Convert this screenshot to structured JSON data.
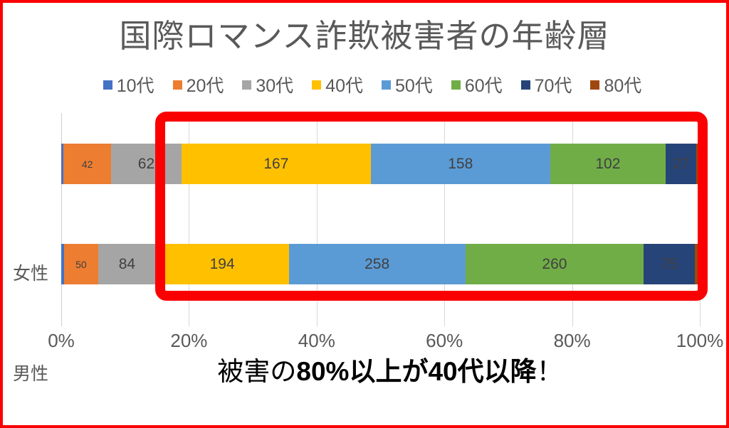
{
  "title": "国際ロマンス詐欺被害者の年齢層",
  "frame": {
    "border_color": "#FA0000"
  },
  "highlight_box": {
    "color": "#FB0000"
  },
  "annotation": {
    "prefix": "被害の",
    "bold": "80%以上が40代以降",
    "suffix": "！"
  },
  "chart_data": {
    "type": "bar",
    "orientation": "horizontal",
    "stacked": true,
    "title": "国際ロマンス詐欺被害者の年齢層",
    "categories": [
      "女性",
      "男性"
    ],
    "series": [
      {
        "name": "10代",
        "color": "#4472C4",
        "values": [
          2,
          4
        ],
        "labels": [
          "",
          ""
        ]
      },
      {
        "name": "20代",
        "color": "#ED7D31",
        "values": [
          42,
          50
        ],
        "labels": [
          "42",
          "50"
        ],
        "small_labels": true
      },
      {
        "name": "30代",
        "color": "#A5A5A5",
        "values": [
          62,
          84
        ],
        "labels": [
          "62",
          "84"
        ]
      },
      {
        "name": "40代",
        "color": "#FFC000",
        "values": [
          167,
          194
        ],
        "labels": [
          "167",
          "194"
        ]
      },
      {
        "name": "50代",
        "color": "#5B9BD5",
        "values": [
          158,
          258
        ],
        "labels": [
          "158",
          "258"
        ]
      },
      {
        "name": "60代",
        "color": "#70AD47",
        "values": [
          102,
          260
        ],
        "labels": [
          "102",
          "260"
        ]
      },
      {
        "name": "70代",
        "color": "#264478",
        "values": [
          27,
          75
        ],
        "labels": [
          "27",
          "75"
        ]
      },
      {
        "name": "80代",
        "color": "#9E480E",
        "values": [
          3,
          7
        ],
        "labels": [
          "",
          ""
        ]
      }
    ],
    "x_ticks": [
      "0%",
      "20%",
      "40%",
      "60%",
      "80%",
      "100%"
    ],
    "xlim": [
      0,
      100
    ],
    "grid": true,
    "legend_position": "top",
    "data_label_color": "#404040",
    "axis_text_color": "#595959",
    "gridline_color": "#D9D9D9"
  }
}
